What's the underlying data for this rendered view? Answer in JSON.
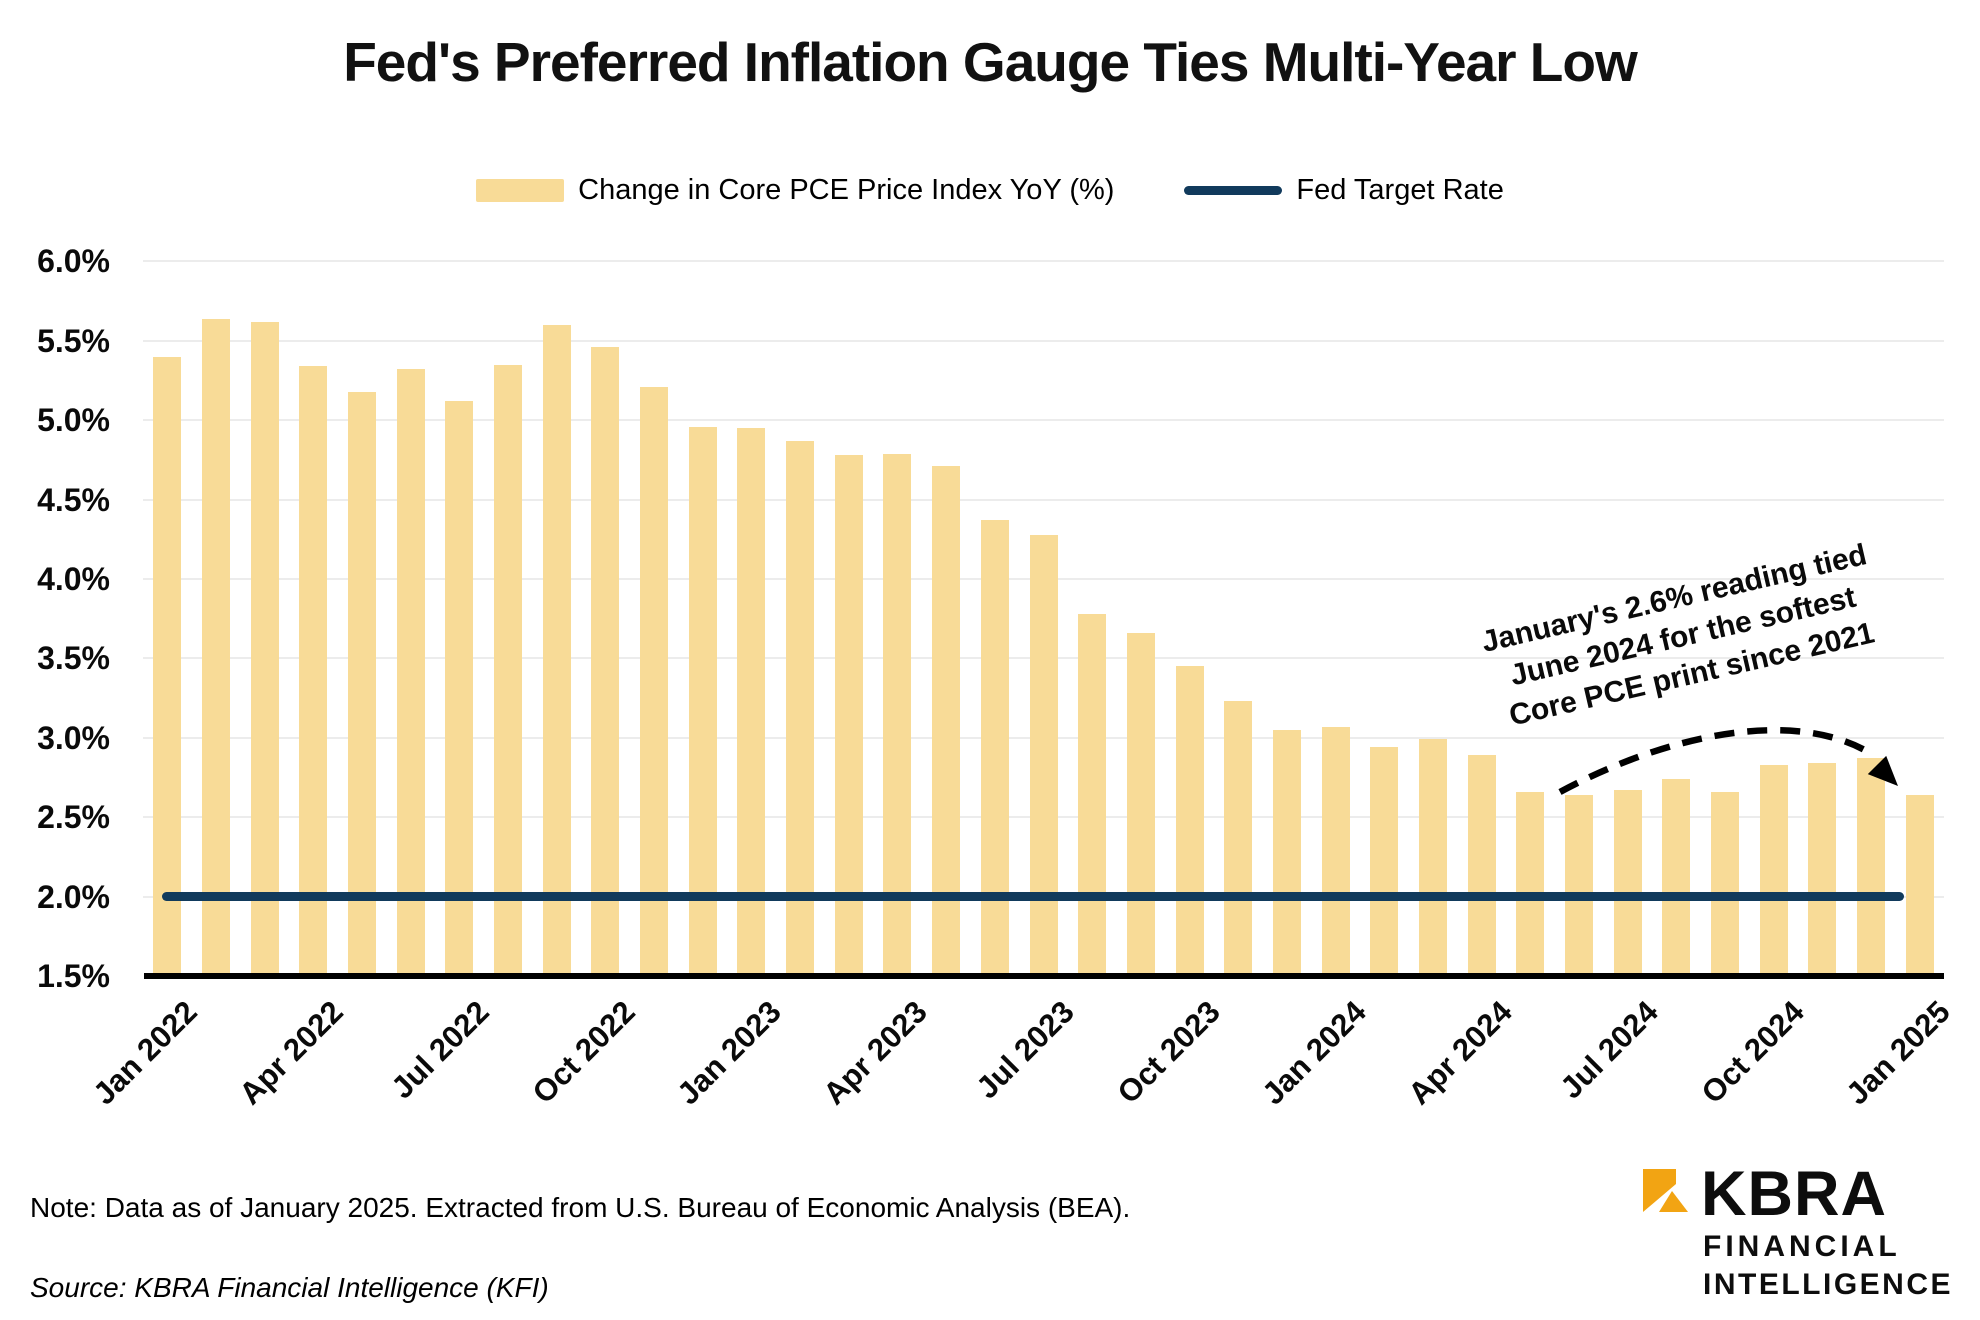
{
  "title": "Fed's Preferred Inflation Gauge Ties Multi-Year Low",
  "legend": {
    "bars_label": "Change in Core PCE Price Index YoY (%)",
    "line_label": "Fed Target Rate"
  },
  "colors": {
    "bar": "#F8DB97",
    "fed_line": "#113A5C",
    "grid": "#ECECEC",
    "axis": "#000000",
    "logo_gold": "#F2A413"
  },
  "chart_data": {
    "type": "bar",
    "title": "Fed's Preferred Inflation Gauge Ties Multi-Year Low",
    "categories": [
      "Jan 2022",
      "Feb 2022",
      "Mar 2022",
      "Apr 2022",
      "May 2022",
      "Jun 2022",
      "Jul 2022",
      "Aug 2022",
      "Sep 2022",
      "Oct 2022",
      "Nov 2022",
      "Dec 2022",
      "Jan 2023",
      "Feb 2023",
      "Mar 2023",
      "Apr 2023",
      "May 2023",
      "Jun 2023",
      "Jul 2023",
      "Aug 2023",
      "Sep 2023",
      "Oct 2023",
      "Nov 2023",
      "Dec 2023",
      "Jan 2024",
      "Feb 2024",
      "Mar 2024",
      "Apr 2024",
      "May 2024",
      "Jun 2024",
      "Jul 2024",
      "Aug 2024",
      "Sep 2024",
      "Oct 2024",
      "Nov 2024",
      "Dec 2024",
      "Jan 2025"
    ],
    "series": [
      {
        "name": "Change in Core PCE Price Index YoY (%)",
        "type": "bar",
        "values": [
          5.4,
          5.64,
          5.62,
          5.34,
          5.18,
          5.32,
          5.12,
          5.35,
          5.6,
          5.46,
          5.21,
          4.96,
          4.95,
          4.87,
          4.78,
          4.79,
          4.71,
          4.37,
          4.28,
          3.78,
          3.66,
          3.45,
          3.23,
          3.05,
          3.07,
          2.94,
          2.99,
          2.89,
          2.66,
          2.64,
          2.67,
          2.74,
          2.66,
          2.83,
          2.84,
          2.87,
          2.64
        ]
      },
      {
        "name": "Fed Target Rate",
        "type": "line",
        "constant_value": 2.0
      }
    ],
    "xlabel": "",
    "ylabel": "",
    "ylim": [
      1.5,
      6.0
    ],
    "ytick_step": 0.5,
    "ytick_suffix": "%",
    "xtick_every": 3,
    "grid": "horizontal",
    "legend_position": "top"
  },
  "annotation": {
    "lines": [
      "January's 2.6% reading tied",
      "June 2024 for the softest",
      "Core PCE print since 2021"
    ]
  },
  "note": "Note: Data as of January 2025. Extracted from U.S. Bureau of Economic Analysis (BEA).",
  "source": "Source: KBRA Financial Intelligence (KFI)",
  "logo": {
    "brand": "KBRA",
    "line1": "FINANCIAL",
    "line2": "INTELLIGENCE"
  }
}
